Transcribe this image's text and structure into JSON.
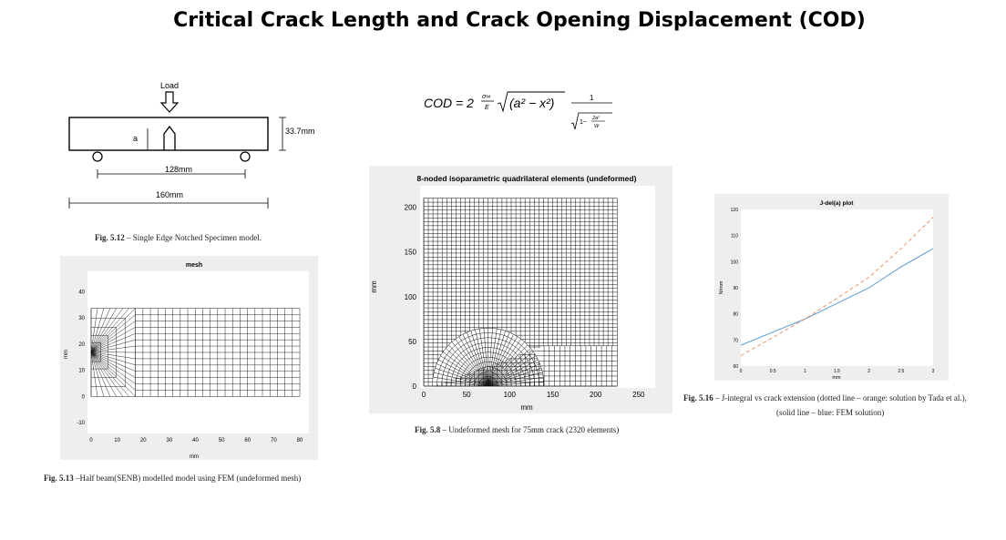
{
  "slide_title": "Critical Crack Length and Crack Opening Displacement (COD)",
  "specimen": {
    "load_label": "Load",
    "a_label": "a",
    "height_label": "33.7mm",
    "span_label": "128mm",
    "length_label": "160mm"
  },
  "formula": {
    "lhs": "COD = 2",
    "frac_num": "σ∞",
    "frac_den": "E",
    "sqrt_term": "(a² − x²)",
    "one": "1",
    "inner_one": "1−",
    "inner_num": "2a²",
    "inner_den": "W"
  },
  "captions": {
    "fig512_num": "Fig. 5.12",
    "fig512_text": " – Single Edge Notched Specimen model.",
    "fig513_num": "Fig. 5.13",
    "fig513_text": " –Half beam(SENB) modelled model using FEM (undeformed mesh)",
    "fig58_num": "Fig. 5.8",
    "fig58_text": " – Undeformed mesh for 75mm crack (2320 elements)",
    "fig516_num": "Fig. 5.16",
    "fig516_text": " – J-integral vs crack extension (dotted line – orange: solution by Tada et al.),",
    "fig516_text2": "(solid line – blue: FEM solution)"
  },
  "mesh_small": {
    "title": "mesh",
    "xlabel": "mm",
    "ylabel": "mm",
    "xticks": [
      "0",
      "10",
      "20",
      "30",
      "40",
      "50",
      "60",
      "70",
      "80"
    ],
    "yticks": [
      "40",
      "30",
      "20",
      "10",
      "0",
      "-10"
    ]
  },
  "mesh_large": {
    "title": "8-noded isoparametric quadrilateral elements (undeformed)",
    "xlabel": "mm",
    "ylabel": "mm",
    "xticks": [
      "0",
      "50",
      "100",
      "150",
      "200",
      "250"
    ],
    "yticks": [
      "200",
      "150",
      "100",
      "50",
      "0"
    ]
  },
  "chart_data": {
    "type": "line",
    "title": "J-del(a) plot",
    "xlabel": "mm",
    "ylabel": "N/mm",
    "xlim": [
      0,
      3
    ],
    "ylim": [
      60,
      120
    ],
    "xticks": [
      "0",
      "0.5",
      "1",
      "1.5",
      "2",
      "2.5",
      "3"
    ],
    "yticks": [
      "120",
      "110",
      "100",
      "90",
      "80",
      "70",
      "60"
    ],
    "series": [
      {
        "style": "solid",
        "color": "#5b9bd5",
        "x": [
          0,
          0.5,
          1,
          1.5,
          2,
          2.5,
          3
        ],
        "y": [
          68,
          73,
          78,
          84,
          90,
          98,
          105
        ]
      },
      {
        "style": "dashed",
        "color": "#e8956a",
        "x": [
          0,
          0.5,
          1,
          1.5,
          2,
          2.5,
          3
        ],
        "y": [
          64,
          71,
          78,
          86,
          94,
          105,
          117
        ]
      }
    ]
  }
}
